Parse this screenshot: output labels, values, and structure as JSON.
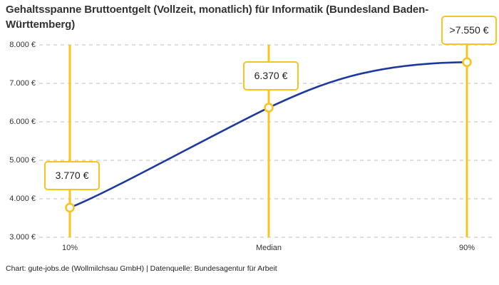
{
  "footer": "Chart: gute-jobs.de (Wollmilchsau GmbH) | Datenquelle: Bundesagentur für Arbeit",
  "colors": {
    "accent_yellow": "#F8C41D",
    "line_blue": "#1F3A9E",
    "grid_gray": "#CBCBCB",
    "title_text": "#333333",
    "box_background": "#FFFFFF"
  },
  "chart_data": {
    "type": "line",
    "title": "Gehaltsspanne Bruttoentgelt (Vollzeit, monatlich) für Informatik (Bundesland Baden-Württemberg)",
    "categories": [
      "10%",
      "Median",
      "90%"
    ],
    "values": [
      3770,
      6370,
      7550
    ],
    "value_labels": [
      "3.770 €",
      "6.370 €",
      ">7.550 €"
    ],
    "yticks": [
      "8.000 €",
      "7.000 €",
      "6.000 €",
      "5.000 €",
      "4.000 €",
      "3.000 €"
    ],
    "ytick_values": [
      8000,
      7000,
      6000,
      5000,
      4000,
      3000
    ],
    "ylim": [
      3000,
      8000
    ],
    "xlabel": "",
    "ylabel": "",
    "grid": "horizontal-dashed",
    "legend": "none"
  }
}
